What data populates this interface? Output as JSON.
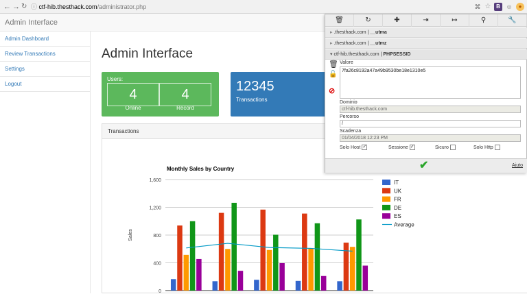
{
  "browser": {
    "url_host": "ctf-hib.thesthack.com",
    "url_path": "/administrator.php",
    "extension_b_label": "B"
  },
  "app": {
    "title": "Admin Interface",
    "sidebar": [
      {
        "label": "Admin Dashboard"
      },
      {
        "label": "Review Transactions"
      },
      {
        "label": "Settings"
      },
      {
        "label": "Logout"
      }
    ],
    "page_title": "Admin Interface",
    "users_panel": {
      "label": "Users:",
      "online_value": "4",
      "online_label": "Online",
      "record_value": "4",
      "record_label": "Record",
      "color": "#5cb85c"
    },
    "transactions_panel": {
      "value": "12345",
      "label": "Transactions",
      "color": "#337ab7"
    },
    "chart_panel_title": "Transactions"
  },
  "chart_data": {
    "type": "bar",
    "title": "Monthly Sales by Country",
    "ylabel": "Sales",
    "xlabel": "",
    "ylim": [
      0,
      1600
    ],
    "yticks": [
      "0",
      "400",
      "800",
      "1,200",
      "1,600"
    ],
    "categories": [
      "",
      "",
      "",
      "",
      ""
    ],
    "series": [
      {
        "name": "IT",
        "color": "#3366cc",
        "values": [
          165,
          135,
          155,
          140,
          135
        ]
      },
      {
        "name": "UK",
        "color": "#dc3912",
        "values": [
          938,
          1120,
          1167,
          1110,
          691
        ]
      },
      {
        "name": "FR",
        "color": "#ff9900",
        "values": [
          515,
          600,
          585,
          610,
          630
        ]
      },
      {
        "name": "DE",
        "color": "#109618",
        "values": [
          1000,
          1265,
          805,
          970,
          1025
        ]
      },
      {
        "name": "ES",
        "color": "#990099",
        "values": [
          455,
          285,
          395,
          210,
          360
        ]
      }
    ],
    "line_series": {
      "name": "Average",
      "color": "#0099c6",
      "values": [
        614,
        681,
        621,
        608,
        568
      ]
    },
    "legend_position": "right"
  },
  "popup": {
    "toolbar": [
      {
        "name": "delete-all-icon",
        "glyph": "🗑"
      },
      {
        "name": "refresh-icon",
        "glyph": "↻"
      },
      {
        "name": "add-icon",
        "glyph": "✚"
      },
      {
        "name": "import-icon",
        "glyph": "⇥"
      },
      {
        "name": "export-icon",
        "glyph": "↦"
      },
      {
        "name": "search-icon",
        "glyph": "⚲"
      },
      {
        "name": "options-icon",
        "glyph": "🔧"
      }
    ],
    "cookies": [
      {
        "domain": ".thesthack.com",
        "name": "__utma"
      },
      {
        "domain": ".thesthack.com",
        "name": "__utmz"
      },
      {
        "domain": "ctf-hib.thesthack.com",
        "name": "PHPSESSID"
      }
    ],
    "value_label": "Valore",
    "value": "7fa26c8192a47a49b9530be18e1310e5",
    "domain_label": "Dominio",
    "domain_value": "ctf-hib.thesthack.com",
    "path_label": "Percorso",
    "path_value": "/",
    "expiry_label": "Scadenza",
    "expiry_value": "01/04/2018 12:23 PM",
    "host_only_label": "Solo Host",
    "session_label": "Sessione",
    "secure_label": "Sicuro",
    "http_only_label": "Solo Http",
    "help_label": "Aiuto"
  }
}
